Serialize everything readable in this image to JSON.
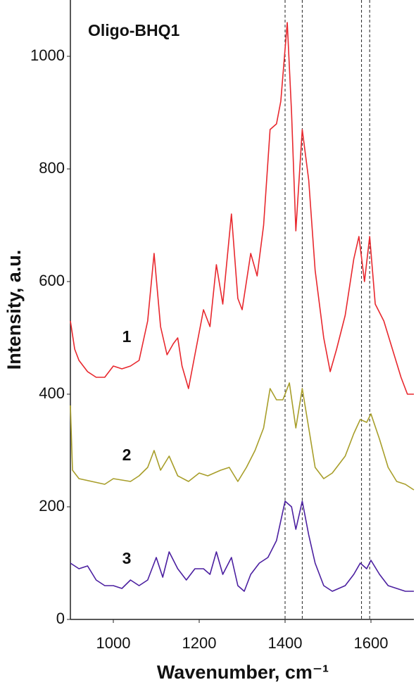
{
  "chart_data": {
    "type": "line",
    "title": "Oligo-BHQ1",
    "x_label": "Wavenumber, cm⁻¹",
    "y_label": "Intensity, a.u.",
    "xlim": [
      900,
      1700
    ],
    "ylim": [
      0,
      1100
    ],
    "xticks": [
      1000,
      1200,
      1400,
      1600
    ],
    "yticks": [
      0,
      200,
      400,
      600,
      800,
      1000
    ],
    "reference_lines": [
      1400,
      1440,
      1578,
      1597
    ],
    "series": [
      {
        "name": "1",
        "color": "#e8282e",
        "x": [
          900,
          910,
          920,
          940,
          960,
          980,
          1000,
          1020,
          1040,
          1060,
          1080,
          1095,
          1110,
          1125,
          1140,
          1150,
          1160,
          1175,
          1190,
          1210,
          1225,
          1240,
          1255,
          1275,
          1290,
          1300,
          1320,
          1335,
          1350,
          1365,
          1380,
          1390,
          1405,
          1415,
          1425,
          1440,
          1455,
          1470,
          1490,
          1505,
          1520,
          1540,
          1560,
          1572,
          1585,
          1597,
          1610,
          1630,
          1650,
          1670,
          1685,
          1700
        ],
        "values": [
          530,
          480,
          460,
          440,
          430,
          430,
          450,
          445,
          450,
          460,
          530,
          650,
          520,
          470,
          490,
          500,
          450,
          410,
          470,
          550,
          520,
          630,
          560,
          720,
          570,
          550,
          650,
          610,
          700,
          870,
          880,
          920,
          1060,
          900,
          690,
          870,
          780,
          620,
          500,
          440,
          480,
          540,
          640,
          680,
          600,
          680,
          560,
          530,
          480,
          430,
          400,
          400
        ]
      },
      {
        "name": "2",
        "color": "#a89e2a",
        "x": [
          900,
          905,
          920,
          950,
          980,
          1000,
          1040,
          1060,
          1080,
          1095,
          1110,
          1130,
          1150,
          1175,
          1200,
          1220,
          1250,
          1270,
          1290,
          1310,
          1330,
          1350,
          1365,
          1380,
          1395,
          1410,
          1425,
          1440,
          1455,
          1470,
          1490,
          1510,
          1540,
          1560,
          1575,
          1590,
          1600,
          1620,
          1640,
          1660,
          1680,
          1700
        ],
        "values": [
          380,
          265,
          250,
          245,
          240,
          250,
          245,
          255,
          270,
          300,
          265,
          290,
          255,
          245,
          260,
          255,
          265,
          270,
          245,
          270,
          300,
          340,
          410,
          390,
          390,
          420,
          340,
          410,
          340,
          270,
          250,
          260,
          290,
          330,
          355,
          350,
          365,
          320,
          270,
          245,
          240,
          230
        ]
      },
      {
        "name": "3",
        "color": "#4b1fa0",
        "x": [
          900,
          920,
          940,
          960,
          980,
          1000,
          1020,
          1040,
          1060,
          1080,
          1100,
          1115,
          1130,
          1150,
          1170,
          1190,
          1210,
          1225,
          1240,
          1255,
          1275,
          1290,
          1305,
          1320,
          1340,
          1360,
          1380,
          1400,
          1415,
          1425,
          1440,
          1455,
          1470,
          1490,
          1510,
          1540,
          1560,
          1575,
          1590,
          1600,
          1620,
          1640,
          1660,
          1680,
          1700
        ],
        "values": [
          100,
          90,
          95,
          70,
          60,
          60,
          55,
          70,
          60,
          70,
          110,
          75,
          120,
          90,
          70,
          90,
          90,
          80,
          120,
          80,
          110,
          60,
          50,
          80,
          100,
          110,
          140,
          210,
          200,
          160,
          210,
          150,
          100,
          60,
          50,
          60,
          80,
          100,
          90,
          105,
          80,
          60,
          55,
          50,
          50
        ]
      }
    ]
  }
}
